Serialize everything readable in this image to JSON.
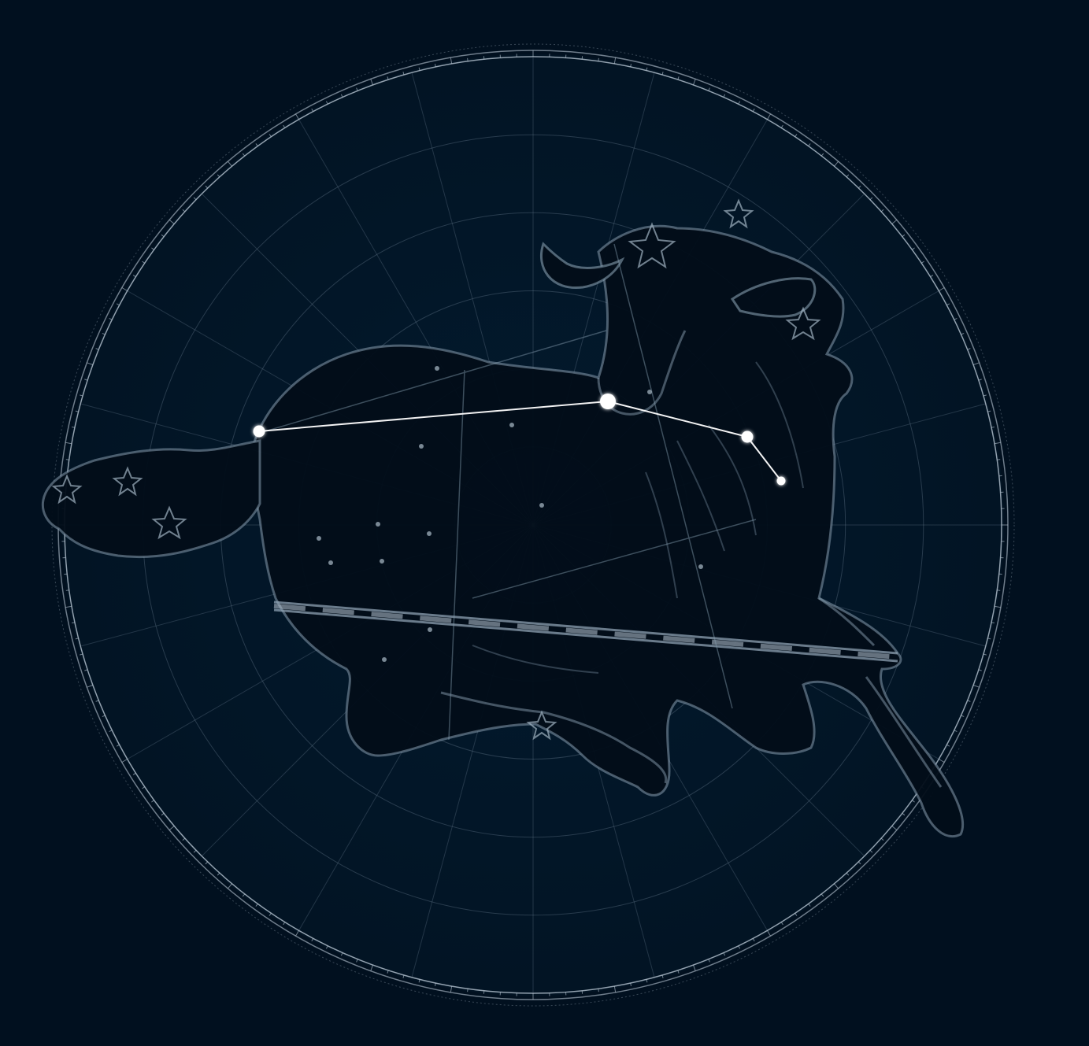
{
  "colors": {
    "background": "#01101f",
    "chart_disc": "#021526",
    "grid": "#6f8497",
    "rim": "#b9c7d3",
    "engraving": "#8fa6b8",
    "figure_fill": "#020d19",
    "constellation_line": "#ffffff",
    "star": "#ffffff"
  },
  "star_map": {
    "grid_rings": 6,
    "grid_spokes": 24,
    "constellation_stars": [
      {
        "name": "star-1",
        "magnitude_rank": 2
      },
      {
        "name": "star-2",
        "magnitude_rank": 1
      },
      {
        "name": "star-3",
        "magnitude_rank": 3
      },
      {
        "name": "star-4",
        "magnitude_rank": 4
      }
    ],
    "constellation_segments": [
      [
        0,
        1
      ],
      [
        1,
        2
      ],
      [
        2,
        3
      ]
    ],
    "figure": {
      "icon": "ram-figure-engraving"
    }
  }
}
